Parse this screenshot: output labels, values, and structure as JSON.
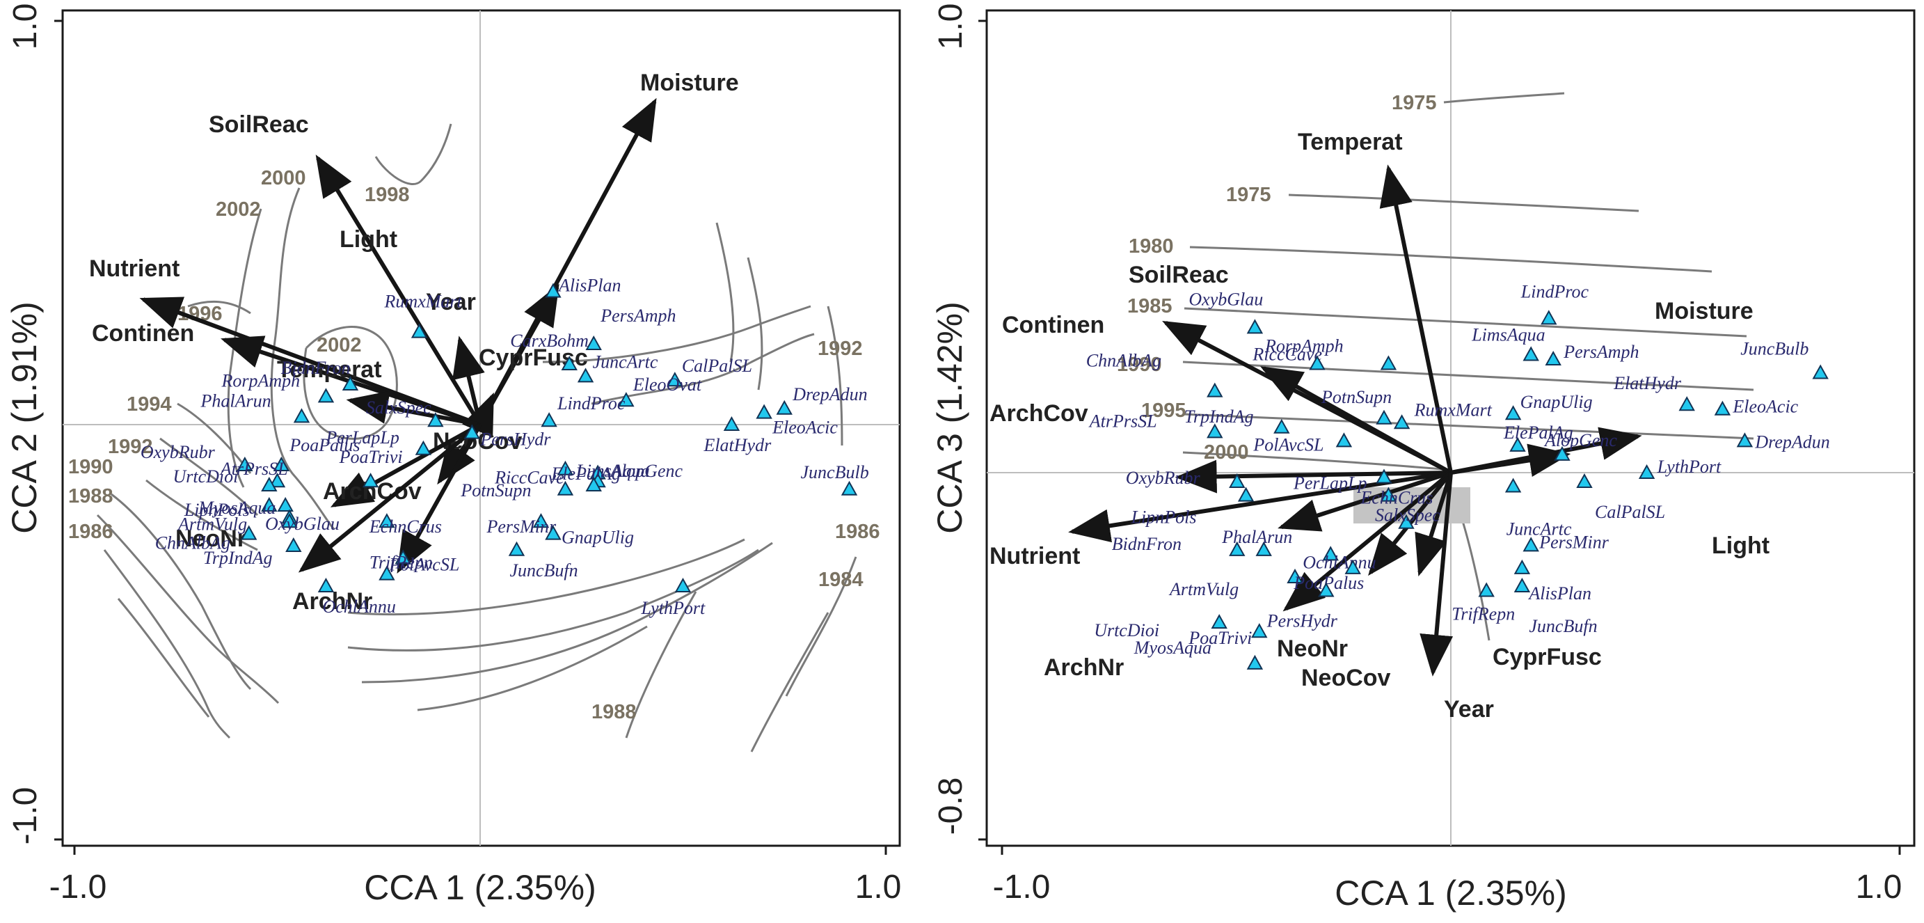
{
  "chart_data": [
    {
      "type": "scatter",
      "title": "",
      "xlabel": "CCA 1 (2.35%)",
      "ylabel": "CCA 2 (1.91%)",
      "xlim": [
        -1.0,
        1.0
      ],
      "ylim": [
        -1.0,
        1.0
      ],
      "xtick_labels": [
        "-1.0",
        "1.0"
      ],
      "ytick_labels": [
        "1.0",
        "-1.0"
      ],
      "arrows": [
        {
          "name": "Moisture",
          "x": 0.43,
          "y": 0.8
        },
        {
          "name": "SoilReac",
          "x": -0.4,
          "y": 0.66
        },
        {
          "name": "Light",
          "x": 0.19,
          "y": 0.34
        },
        {
          "name": "Nutrient",
          "x": -0.83,
          "y": 0.31
        },
        {
          "name": "Year",
          "x": -0.05,
          "y": 0.21
        },
        {
          "name": "Continen",
          "x": -0.63,
          "y": 0.21
        },
        {
          "name": "CyprFusc",
          "x": 0.03,
          "y": 0.07
        },
        {
          "name": "Temperat",
          "x": -0.32,
          "y": 0.06
        },
        {
          "name": "NeoCov",
          "x": -0.1,
          "y": -0.14
        },
        {
          "name": "ArchCov",
          "x": -0.36,
          "y": -0.2
        },
        {
          "name": "NeoNr",
          "x": -0.44,
          "y": -0.36
        },
        {
          "name": "ArchNr",
          "x": -0.2,
          "y": -0.36
        }
      ],
      "species": [
        {
          "name": "AlisPlan",
          "x": 0.18,
          "y": 0.33
        },
        {
          "name": "RumxMart",
          "x": -0.15,
          "y": 0.23
        },
        {
          "name": "PersAmph",
          "x": 0.28,
          "y": 0.2
        },
        {
          "name": "CarxBohm",
          "x": 0.22,
          "y": 0.15
        },
        {
          "name": "JuncArtc",
          "x": 0.26,
          "y": 0.12
        },
        {
          "name": "CalPalSL",
          "x": 0.48,
          "y": 0.11
        },
        {
          "name": "BidnFron",
          "x": -0.32,
          "y": 0.1
        },
        {
          "name": "RorpAmph",
          "x": -0.38,
          "y": 0.07
        },
        {
          "name": "EleoOvat",
          "x": 0.36,
          "y": 0.06
        },
        {
          "name": "DrepAdun",
          "x": 0.75,
          "y": 0.04
        },
        {
          "name": "PhalArun",
          "x": -0.44,
          "y": 0.02
        },
        {
          "name": "EleoAcic",
          "x": 0.7,
          "y": 0.03
        },
        {
          "name": "SalxSpec",
          "x": -0.11,
          "y": 0.01
        },
        {
          "name": "ElatHydr",
          "x": 0.62,
          "y": 0.0
        },
        {
          "name": "PersHydr",
          "x": -0.02,
          "y": -0.02
        },
        {
          "name": "LindProc",
          "x": 0.17,
          "y": 0.01
        },
        {
          "name": "PerLapLp",
          "x": -0.14,
          "y": -0.06
        },
        {
          "name": "OxybRubr",
          "x": -0.58,
          "y": -0.1
        },
        {
          "name": "PoaPalus",
          "x": -0.49,
          "y": -0.1
        },
        {
          "name": "UrtcDioi",
          "x": -0.5,
          "y": -0.14
        },
        {
          "name": "PoaTrivi",
          "x": -0.27,
          "y": -0.14
        },
        {
          "name": "RiccCave",
          "x": 0.29,
          "y": -0.12
        },
        {
          "name": "ElePalAg",
          "x": 0.21,
          "y": -0.11
        },
        {
          "name": "AlopGenc",
          "x": 0.29,
          "y": -0.14
        },
        {
          "name": "PotnSupn",
          "x": 0.21,
          "y": -0.16
        },
        {
          "name": "AtrPrsSL",
          "x": -0.52,
          "y": -0.15
        },
        {
          "name": "LipnPols",
          "x": -0.52,
          "y": -0.2
        },
        {
          "name": "MyosAqua",
          "x": -0.48,
          "y": -0.2
        },
        {
          "name": "ArtmVulg",
          "x": -0.47,
          "y": -0.23
        },
        {
          "name": "OxybGlau",
          "x": -0.47,
          "y": -0.24
        },
        {
          "name": "LimsAqua",
          "x": 0.28,
          "y": -0.15
        },
        {
          "name": "EchnCrus",
          "x": -0.23,
          "y": -0.24
        },
        {
          "name": "PersMinr",
          "x": 0.15,
          "y": -0.24
        },
        {
          "name": "ChnAlbAg",
          "x": -0.57,
          "y": -0.27
        },
        {
          "name": "GnapUlig",
          "x": 0.18,
          "y": -0.27
        },
        {
          "name": "JuncBulb",
          "x": 0.91,
          "y": -0.16
        },
        {
          "name": "TrpIndAg",
          "x": -0.46,
          "y": -0.3
        },
        {
          "name": "PolAvcSL",
          "x": -0.19,
          "y": -0.33
        },
        {
          "name": "JuncBufn",
          "x": 0.09,
          "y": -0.31
        },
        {
          "name": "TrifRepn",
          "x": -0.23,
          "y": -0.37
        },
        {
          "name": "OchlAnnu",
          "x": -0.38,
          "y": -0.4
        },
        {
          "name": "LythPort",
          "x": 0.5,
          "y": -0.4
        }
      ],
      "contour_labels": [
        "2000",
        "2002",
        "1998",
        "1996",
        "2002",
        "1994",
        "1992",
        "1990",
        "1988",
        "1986",
        "1992",
        "1986",
        "1984",
        "1988"
      ]
    },
    {
      "type": "scatter",
      "title": "",
      "xlabel": "CCA 1 (2.35%)",
      "ylabel": "CCA 3 (1.42%)",
      "xlim": [
        -1.0,
        1.0
      ],
      "ylim": [
        -0.8,
        1.0
      ],
      "xtick_labels": [
        "-1.0",
        "1.0"
      ],
      "ytick_labels": [
        "1.0",
        "-0.8"
      ],
      "arrows": [
        {
          "name": "Temperat",
          "x": -0.14,
          "y": 0.67
        },
        {
          "name": "SoilReac",
          "x": -0.64,
          "y": 0.33
        },
        {
          "name": "Continen",
          "x": -0.42,
          "y": 0.23
        },
        {
          "name": "Moisture",
          "x": 0.42,
          "y": 0.08
        },
        {
          "name": "Light",
          "x": 0.26,
          "y": 0.04
        },
        {
          "name": "ArchCov",
          "x": -0.61,
          "y": -0.01
        },
        {
          "name": "Nutrient",
          "x": -0.85,
          "y": -0.13
        },
        {
          "name": "ArchNr",
          "x": -0.38,
          "y": -0.12
        },
        {
          "name": "NeoNr",
          "x": -0.37,
          "y": -0.3
        },
        {
          "name": "NeoCov",
          "x": -0.18,
          "y": -0.22
        },
        {
          "name": "CyprFusc",
          "x": -0.07,
          "y": -0.22
        },
        {
          "name": "Year",
          "x": -0.04,
          "y": -0.44
        }
      ],
      "species": [
        {
          "name": "LindProc",
          "x": 0.22,
          "y": 0.34
        },
        {
          "name": "OxybGlau",
          "x": -0.44,
          "y": 0.32
        },
        {
          "name": "LimsAqua",
          "x": 0.18,
          "y": 0.26
        },
        {
          "name": "RiccCave",
          "x": -0.14,
          "y": 0.24
        },
        {
          "name": "PersAmph",
          "x": 0.23,
          "y": 0.25
        },
        {
          "name": "RorpAmph",
          "x": -0.3,
          "y": 0.24
        },
        {
          "name": "JuncBulb",
          "x": 0.83,
          "y": 0.22
        },
        {
          "name": "ElatHydr",
          "x": 0.53,
          "y": 0.15
        },
        {
          "name": "ChnAlbAg",
          "x": -0.53,
          "y": 0.18
        },
        {
          "name": "EleoAcic",
          "x": 0.61,
          "y": 0.14
        },
        {
          "name": "PotnSupn",
          "x": -0.15,
          "y": 0.12
        },
        {
          "name": "GnapUlig",
          "x": 0.14,
          "y": 0.13
        },
        {
          "name": "DrepAdun",
          "x": 0.66,
          "y": 0.07
        },
        {
          "name": "TrpIndAg",
          "x": -0.38,
          "y": 0.1
        },
        {
          "name": "RumxMart",
          "x": -0.11,
          "y": 0.11
        },
        {
          "name": "AtrPrsSL",
          "x": -0.53,
          "y": 0.09
        },
        {
          "name": "ElePalAg",
          "x": 0.15,
          "y": 0.06
        },
        {
          "name": "AlopGenc",
          "x": 0.25,
          "y": 0.04
        },
        {
          "name": "PolAvcSL",
          "x": -0.24,
          "y": 0.07
        },
        {
          "name": "LythPort",
          "x": 0.44,
          "y": 0.0
        },
        {
          "name": "OxybRubr",
          "x": -0.48,
          "y": -0.02
        },
        {
          "name": "PerLapLp",
          "x": -0.15,
          "y": -0.01
        },
        {
          "name": "CalPalSL",
          "x": 0.3,
          "y": -0.02
        },
        {
          "name": "JuncArtc",
          "x": 0.14,
          "y": -0.03
        },
        {
          "name": "EchnCrus",
          "x": -0.14,
          "y": -0.05
        },
        {
          "name": "LipnPols",
          "x": -0.46,
          "y": -0.05
        },
        {
          "name": "SalxSpec",
          "x": -0.1,
          "y": -0.11
        },
        {
          "name": "PhalArun",
          "x": -0.42,
          "y": -0.17
        },
        {
          "name": "BidnFron",
          "x": -0.48,
          "y": -0.17
        },
        {
          "name": "PersMinr",
          "x": 0.18,
          "y": -0.16
        },
        {
          "name": "AlisPlan",
          "x": 0.16,
          "y": -0.21
        },
        {
          "name": "ArtmVulg",
          "x": -0.35,
          "y": -0.23
        },
        {
          "name": "MyosAqua",
          "x": -0.43,
          "y": -0.35
        },
        {
          "name": "OchlAnnu",
          "x": -0.27,
          "y": -0.18
        },
        {
          "name": "PoaPalus",
          "x": -0.22,
          "y": -0.21
        },
        {
          "name": "JuncBufn",
          "x": 0.16,
          "y": -0.25
        },
        {
          "name": "PersHydr",
          "x": -0.28,
          "y": -0.26
        },
        {
          "name": "TrifRepn",
          "x": 0.08,
          "y": -0.26
        },
        {
          "name": "UrtcDioi",
          "x": -0.52,
          "y": -0.33
        },
        {
          "name": "PoaTrivi",
          "x": -0.44,
          "y": -0.42
        }
      ],
      "contour_labels": [
        "1975",
        "1975",
        "1980",
        "1985",
        "1990",
        "1995",
        "2000"
      ]
    }
  ]
}
